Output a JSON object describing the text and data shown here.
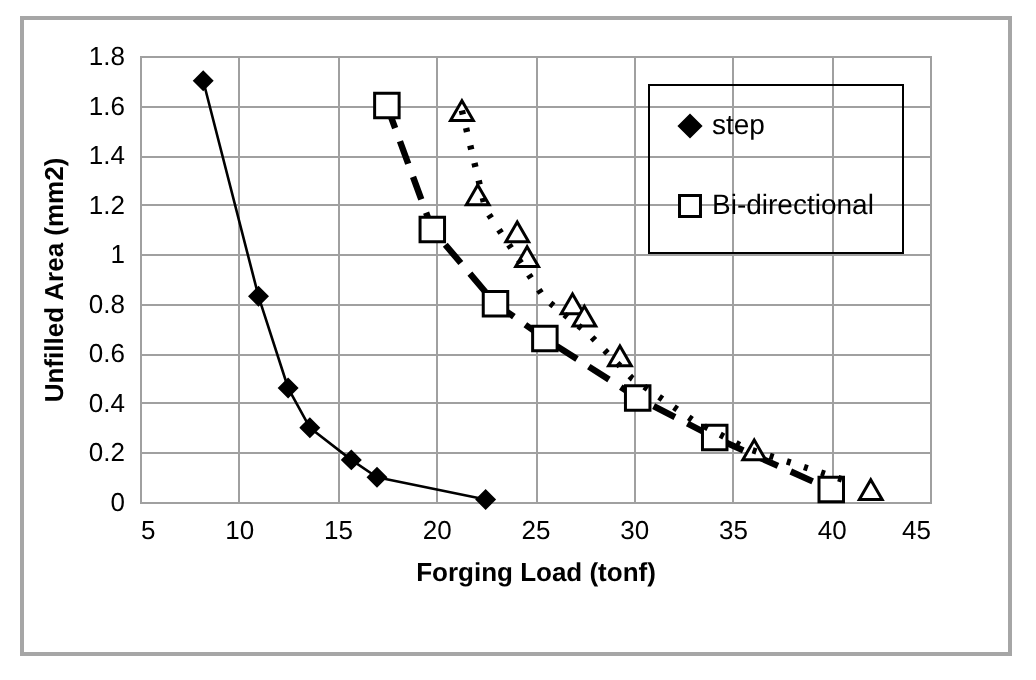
{
  "chart_data": {
    "type": "line",
    "xlabel": "Forging Load (tonf)",
    "ylabel": "Unfilled Area (mm2)",
    "xlim": [
      5,
      45
    ],
    "xticks": [
      5,
      10,
      15,
      20,
      25,
      30,
      35,
      40,
      45
    ],
    "ylim": [
      0,
      1.8
    ],
    "yticks": [
      {
        "value": 0,
        "label": "0"
      },
      0.2,
      0.4,
      0.6,
      0.8,
      1,
      1.2,
      1.4,
      1.6,
      1.8
    ],
    "grid": true,
    "legend": "top right",
    "series": [
      {
        "name": "step",
        "color": "#000000",
        "marker": "diamond",
        "line_style": "solid",
        "x": [
          8.2,
          11,
          12.5,
          13.6,
          15.7,
          17,
          22.5
        ],
        "values": [
          1.7,
          0.83,
          0.46,
          0.3,
          0.17,
          0.1,
          0.01
        ]
      },
      {
        "name": "Bi-directional",
        "color": "#000000",
        "marker": "square",
        "line_style": "dashed",
        "x": [
          17.5,
          19.8,
          23,
          25.5,
          30.2,
          34.1,
          40
        ],
        "values": [
          1.6,
          1.1,
          0.8,
          0.66,
          0.42,
          0.26,
          0.05
        ]
      },
      {
        "type": "scatter",
        "color": "#000000",
        "marker": "triangle",
        "x": [
          21.3,
          22.1,
          24.1,
          24.6,
          26.9,
          27.5,
          29.3,
          36.1,
          42
        ],
        "values": [
          1.58,
          1.24,
          1.09,
          0.99,
          0.8,
          0.75,
          0.59,
          0.21,
          0.05
        ]
      },
      {
        "color": "#000000",
        "marker": "none",
        "line_style": "dotted",
        "x": [
          21.3,
          22.5,
          25.5,
          27.7,
          29.9,
          33,
          35.6,
          40.6
        ],
        "values": [
          1.58,
          1.18,
          0.82,
          0.68,
          0.5,
          0.33,
          0.22,
          0.09
        ]
      }
    ]
  }
}
